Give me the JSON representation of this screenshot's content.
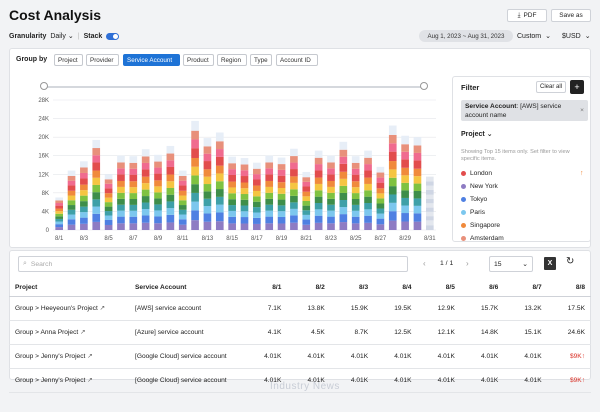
{
  "header": {
    "title": "Cost Analysis",
    "pdf_label": "PDF",
    "saveas_label": "Save as"
  },
  "controls": {
    "granularity_label": "Granularity",
    "granularity_value": "Daily",
    "stack_label": "Stack",
    "date_range": "Aug 1, 2023 ~ Aug 31, 2023",
    "range_mode": "Custom",
    "currency": "$USD"
  },
  "groupby": {
    "label": "Group by",
    "chips": [
      "Project",
      "Provider",
      "Service Account",
      "Product",
      "Region",
      "Type",
      "Account ID"
    ],
    "active_index": 2
  },
  "chart_data": {
    "type": "bar",
    "stacked": true,
    "ylim": [
      0,
      28000
    ],
    "yticks": [
      "0",
      "4K",
      "8K",
      "12K",
      "16K",
      "20K",
      "24K",
      "28K"
    ],
    "xtick_labels": [
      "8/1",
      "8/3",
      "8/5",
      "8/7",
      "8/9",
      "8/11",
      "8/13",
      "8/15",
      "8/17",
      "8/19",
      "8/21",
      "8/23",
      "8/25",
      "8/27",
      "8/29",
      "8/31"
    ],
    "totals": [
      7000,
      12800,
      14800,
      19400,
      12000,
      16000,
      15900,
      17400,
      16200,
      18100,
      12800,
      23500,
      19800,
      21000,
      15800,
      15500,
      14500,
      16000,
      15600,
      17500,
      12500,
      17100,
      16000,
      19000,
      15900,
      17100,
      13600,
      22500,
      20300,
      20000,
      11500
    ],
    "segment_colors": [
      "#8e7cc3",
      "#4f80e2",
      "#7cc7ee",
      "#3ea0a8",
      "#3e8e4a",
      "#7fc241",
      "#f5c542",
      "#f08a3c",
      "#e24d4d",
      "#f06b8f",
      "#e8907b",
      "#e7eef7"
    ],
    "segment_fractions": [
      0.09,
      0.09,
      0.08,
      0.08,
      0.08,
      0.08,
      0.08,
      0.08,
      0.09,
      0.08,
      0.08,
      0.09
    ]
  },
  "filter": {
    "title": "Filter",
    "clear_label": "Clear all",
    "add_label": "+",
    "tag_key": "Service Account",
    "tag_value": ": [AWS] service account name",
    "tag_close": "×",
    "project_label": "Project",
    "hint": "Showing Top 15 items only. Set filter to view specific items.",
    "items": [
      {
        "name": "London",
        "color": "#e24d4d"
      },
      {
        "name": "New York",
        "color": "#8e7cc3"
      },
      {
        "name": "Tokyo",
        "color": "#4f80e2"
      },
      {
        "name": "Paris",
        "color": "#7cc7ee"
      },
      {
        "name": "Singapore",
        "color": "#f08a3c"
      },
      {
        "name": "Amsterdam",
        "color": "#e8907b"
      }
    ]
  },
  "table": {
    "search_placeholder": "Search",
    "page": "1 / 1",
    "page_size": "15",
    "headers": [
      "Project",
      "Service Account",
      "8/1",
      "8/2",
      "8/3",
      "8/4",
      "8/5",
      "8/6",
      "8/7",
      "8/8"
    ],
    "rows": [
      {
        "project": "Group > Heeyeoun's Project",
        "account": "[AWS] service account",
        "values": [
          "7.1K",
          "13.8K",
          "15.9K",
          "19.5K",
          "12.9K",
          "15.7K",
          "13.2K",
          "17.5K"
        ],
        "last_red": false
      },
      {
        "project": "Group > Anna Project",
        "account": "[Azure] service account",
        "values": [
          "4.1K",
          "4.5K",
          "8.7K",
          "12.5K",
          "12.1K",
          "14.8K",
          "15.1K",
          "24.6K"
        ],
        "last_red": false
      },
      {
        "project": "Group > Jenny's Project",
        "account": "[Google Cloud] service account",
        "values": [
          "4.01K",
          "4.01K",
          "4.01K",
          "4.01K",
          "4.01K",
          "4.01K",
          "4.01K",
          "$9K"
        ],
        "last_red": true
      },
      {
        "project": "Group > Jenny's Project",
        "account": "[Google Cloud] service account",
        "values": [
          "4.01K",
          "4.01K",
          "4.01K",
          "4.01K",
          "4.01K",
          "4.01K",
          "4.01K",
          "$9K"
        ],
        "last_red": true
      }
    ]
  },
  "watermark": "Industry News"
}
